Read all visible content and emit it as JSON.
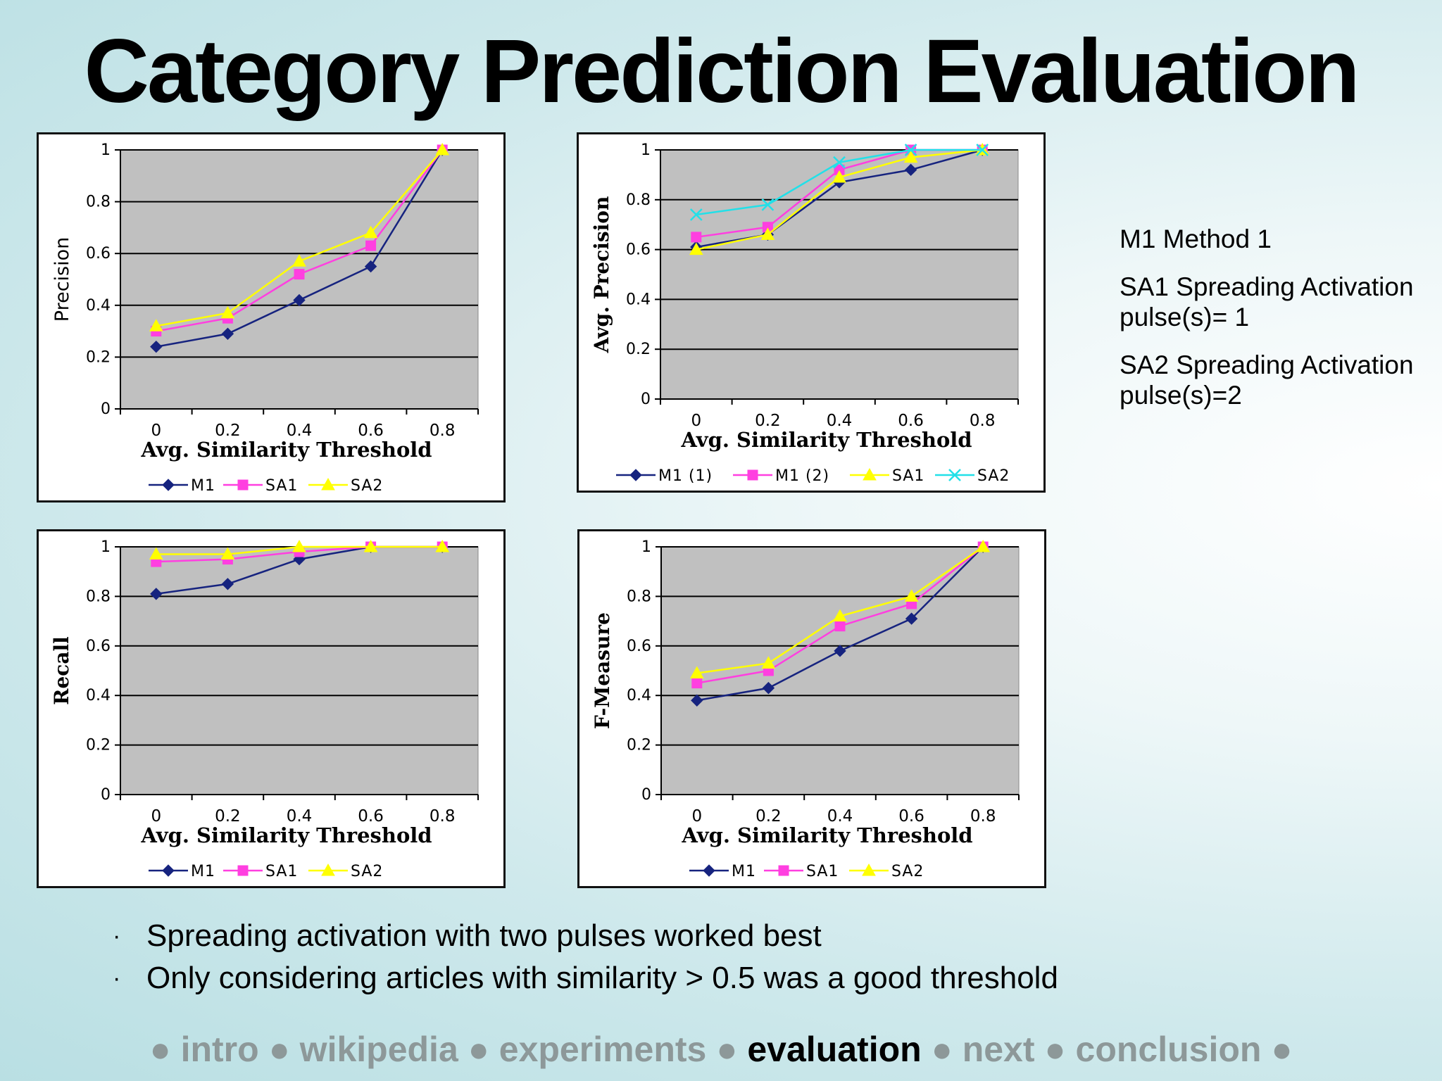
{
  "page": {
    "title": "Category Prediction Evaluation",
    "legend_notes": [
      "M1 Method 1",
      "SA1 Spreading Activation pulse(s)= 1",
      "SA2 Spreading Activation pulse(s)=2"
    ],
    "bullets": [
      "Spreading activation with two pulses worked best",
      "Only considering articles with similarity > 0.5 was a good threshold"
    ],
    "bullet_marker": "·",
    "nav": {
      "separator": "●",
      "items": [
        {
          "label": "intro",
          "active": false
        },
        {
          "label": "wikipedia",
          "active": false
        },
        {
          "label": "experiments",
          "active": false
        },
        {
          "label": "evaluation",
          "active": true
        },
        {
          "label": "next",
          "active": false
        },
        {
          "label": "conclusion",
          "active": false
        }
      ]
    }
  },
  "chart_data": [
    {
      "type": "line",
      "ylabel": "Precision",
      "xlabel": "Avg. Similarity Threshold",
      "x": [
        0,
        0.2,
        0.4,
        0.6,
        0.8
      ],
      "x_tick_labels": [
        "0",
        "0.2",
        "0.4",
        "0.6",
        "0.8"
      ],
      "ylim": [
        0,
        1
      ],
      "y_ticks": [
        0,
        0.2,
        0.4,
        0.6,
        0.8,
        1
      ],
      "y_tick_labels": [
        "0",
        "0.2",
        "0.4",
        "0.6",
        "0.8",
        "1"
      ],
      "grid": true,
      "legend": "bottom",
      "ylabel_serif": false,
      "series": [
        {
          "name": "M1",
          "color": "#16237f",
          "marker": "diamond",
          "values": [
            0.24,
            0.29,
            0.42,
            0.55,
            1.0
          ]
        },
        {
          "name": "SA1",
          "color": "#ff3fe0",
          "marker": "square",
          "values": [
            0.3,
            0.35,
            0.52,
            0.63,
            1.0
          ]
        },
        {
          "name": "SA2",
          "color": "#ffff00",
          "marker": "triangle",
          "values": [
            0.32,
            0.37,
            0.57,
            0.68,
            1.0
          ]
        }
      ]
    },
    {
      "type": "line",
      "ylabel": "Avg. Precision",
      "xlabel": "Avg. Similarity Threshold",
      "x": [
        0,
        0.2,
        0.4,
        0.6,
        0.8
      ],
      "x_tick_labels": [
        "0",
        "0.2",
        "0.4",
        "0.6",
        "0.8"
      ],
      "ylim": [
        0,
        1
      ],
      "y_ticks": [
        0,
        0.2,
        0.4,
        0.6,
        0.8,
        1
      ],
      "y_tick_labels": [
        "0",
        "0.2",
        "0.4",
        "0.6",
        "0.8",
        "1"
      ],
      "grid": true,
      "legend": "bottom",
      "ylabel_serif": true,
      "series": [
        {
          "name": "M1 (1)",
          "color": "#16237f",
          "marker": "diamond",
          "values": [
            0.61,
            0.66,
            0.87,
            0.92,
            1.0
          ]
        },
        {
          "name": "M1 (2)",
          "color": "#ff3fe0",
          "marker": "square",
          "values": [
            0.65,
            0.69,
            0.92,
            1.0,
            1.0
          ]
        },
        {
          "name": "SA1",
          "color": "#ffff00",
          "marker": "triangle",
          "values": [
            0.6,
            0.66,
            0.89,
            0.97,
            1.0
          ]
        },
        {
          "name": "SA2",
          "color": "#22e0e8",
          "marker": "x",
          "values": [
            0.74,
            0.78,
            0.95,
            1.0,
            1.0
          ]
        }
      ]
    },
    {
      "type": "line",
      "ylabel": "Recall",
      "xlabel": "Avg. Similarity Threshold",
      "x": [
        0,
        0.2,
        0.4,
        0.6,
        0.8
      ],
      "x_tick_labels": [
        "0",
        "0.2",
        "0.4",
        "0.6",
        "0.8"
      ],
      "ylim": [
        0,
        1
      ],
      "y_ticks": [
        0,
        0.2,
        0.4,
        0.6,
        0.8,
        1
      ],
      "y_tick_labels": [
        "0",
        "0.2",
        "0.4",
        "0.6",
        "0.8",
        "1"
      ],
      "grid": true,
      "legend": "bottom",
      "ylabel_serif": true,
      "series": [
        {
          "name": "M1",
          "color": "#16237f",
          "marker": "diamond",
          "values": [
            0.81,
            0.85,
            0.95,
            1.0,
            1.0
          ]
        },
        {
          "name": "SA1",
          "color": "#ff3fe0",
          "marker": "square",
          "values": [
            0.94,
            0.95,
            0.98,
            1.0,
            1.0
          ]
        },
        {
          "name": "SA2",
          "color": "#ffff00",
          "marker": "triangle",
          "values": [
            0.97,
            0.97,
            1.0,
            1.0,
            1.0
          ]
        }
      ]
    },
    {
      "type": "line",
      "ylabel": "F-Measure",
      "xlabel": "Avg. Similarity Threshold",
      "x": [
        0,
        0.2,
        0.4,
        0.6,
        0.8
      ],
      "x_tick_labels": [
        "0",
        "0.2",
        "0.4",
        "0.6",
        "0.8"
      ],
      "ylim": [
        0,
        1
      ],
      "y_ticks": [
        0,
        0.2,
        0.4,
        0.6,
        0.8,
        1
      ],
      "y_tick_labels": [
        "0",
        "0.2",
        "0.4",
        "0.6",
        "0.8",
        "1"
      ],
      "grid": true,
      "legend": "bottom",
      "ylabel_serif": true,
      "series": [
        {
          "name": "M1",
          "color": "#16237f",
          "marker": "diamond",
          "values": [
            0.38,
            0.43,
            0.58,
            0.71,
            1.0
          ]
        },
        {
          "name": "SA1",
          "color": "#ff3fe0",
          "marker": "square",
          "values": [
            0.45,
            0.5,
            0.68,
            0.77,
            1.0
          ]
        },
        {
          "name": "SA2",
          "color": "#ffff00",
          "marker": "triangle",
          "values": [
            0.49,
            0.53,
            0.72,
            0.8,
            1.0
          ]
        }
      ]
    }
  ]
}
